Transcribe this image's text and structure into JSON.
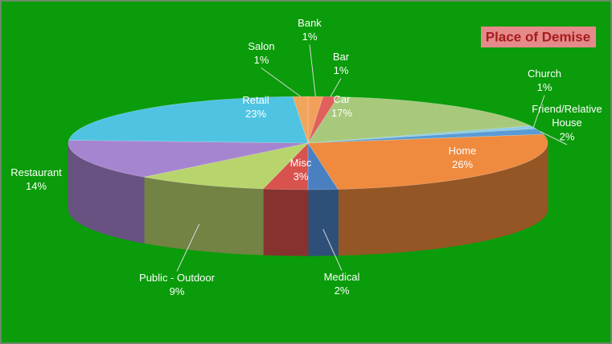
{
  "chart_data": {
    "type": "pie3d",
    "title": "Place of Demise",
    "categories": [
      "Bank",
      "Bar",
      "Car",
      "Church",
      "Friend/Relative House",
      "Home",
      "Medical",
      "Misc",
      "Public - Outdoor",
      "Restaurant",
      "Retail",
      "Salon"
    ],
    "values": [
      1,
      1,
      17,
      1,
      2,
      26,
      2,
      3,
      9,
      14,
      23,
      1
    ],
    "value_labels": [
      "1%",
      "1%",
      "17%",
      "1%",
      "2%",
      "26%",
      "2%",
      "3%",
      "9%",
      "14%",
      "23%",
      "1%"
    ],
    "colors": [
      "#f2a05a",
      "#e0605c",
      "#a8c97c",
      "#8ccbe8",
      "#5b9bd5",
      "#f08a3e",
      "#4a7fc1",
      "#d8524e",
      "#b8d46c",
      "#a685d0",
      "#4fc4e2",
      "#f0a55c"
    ]
  }
}
